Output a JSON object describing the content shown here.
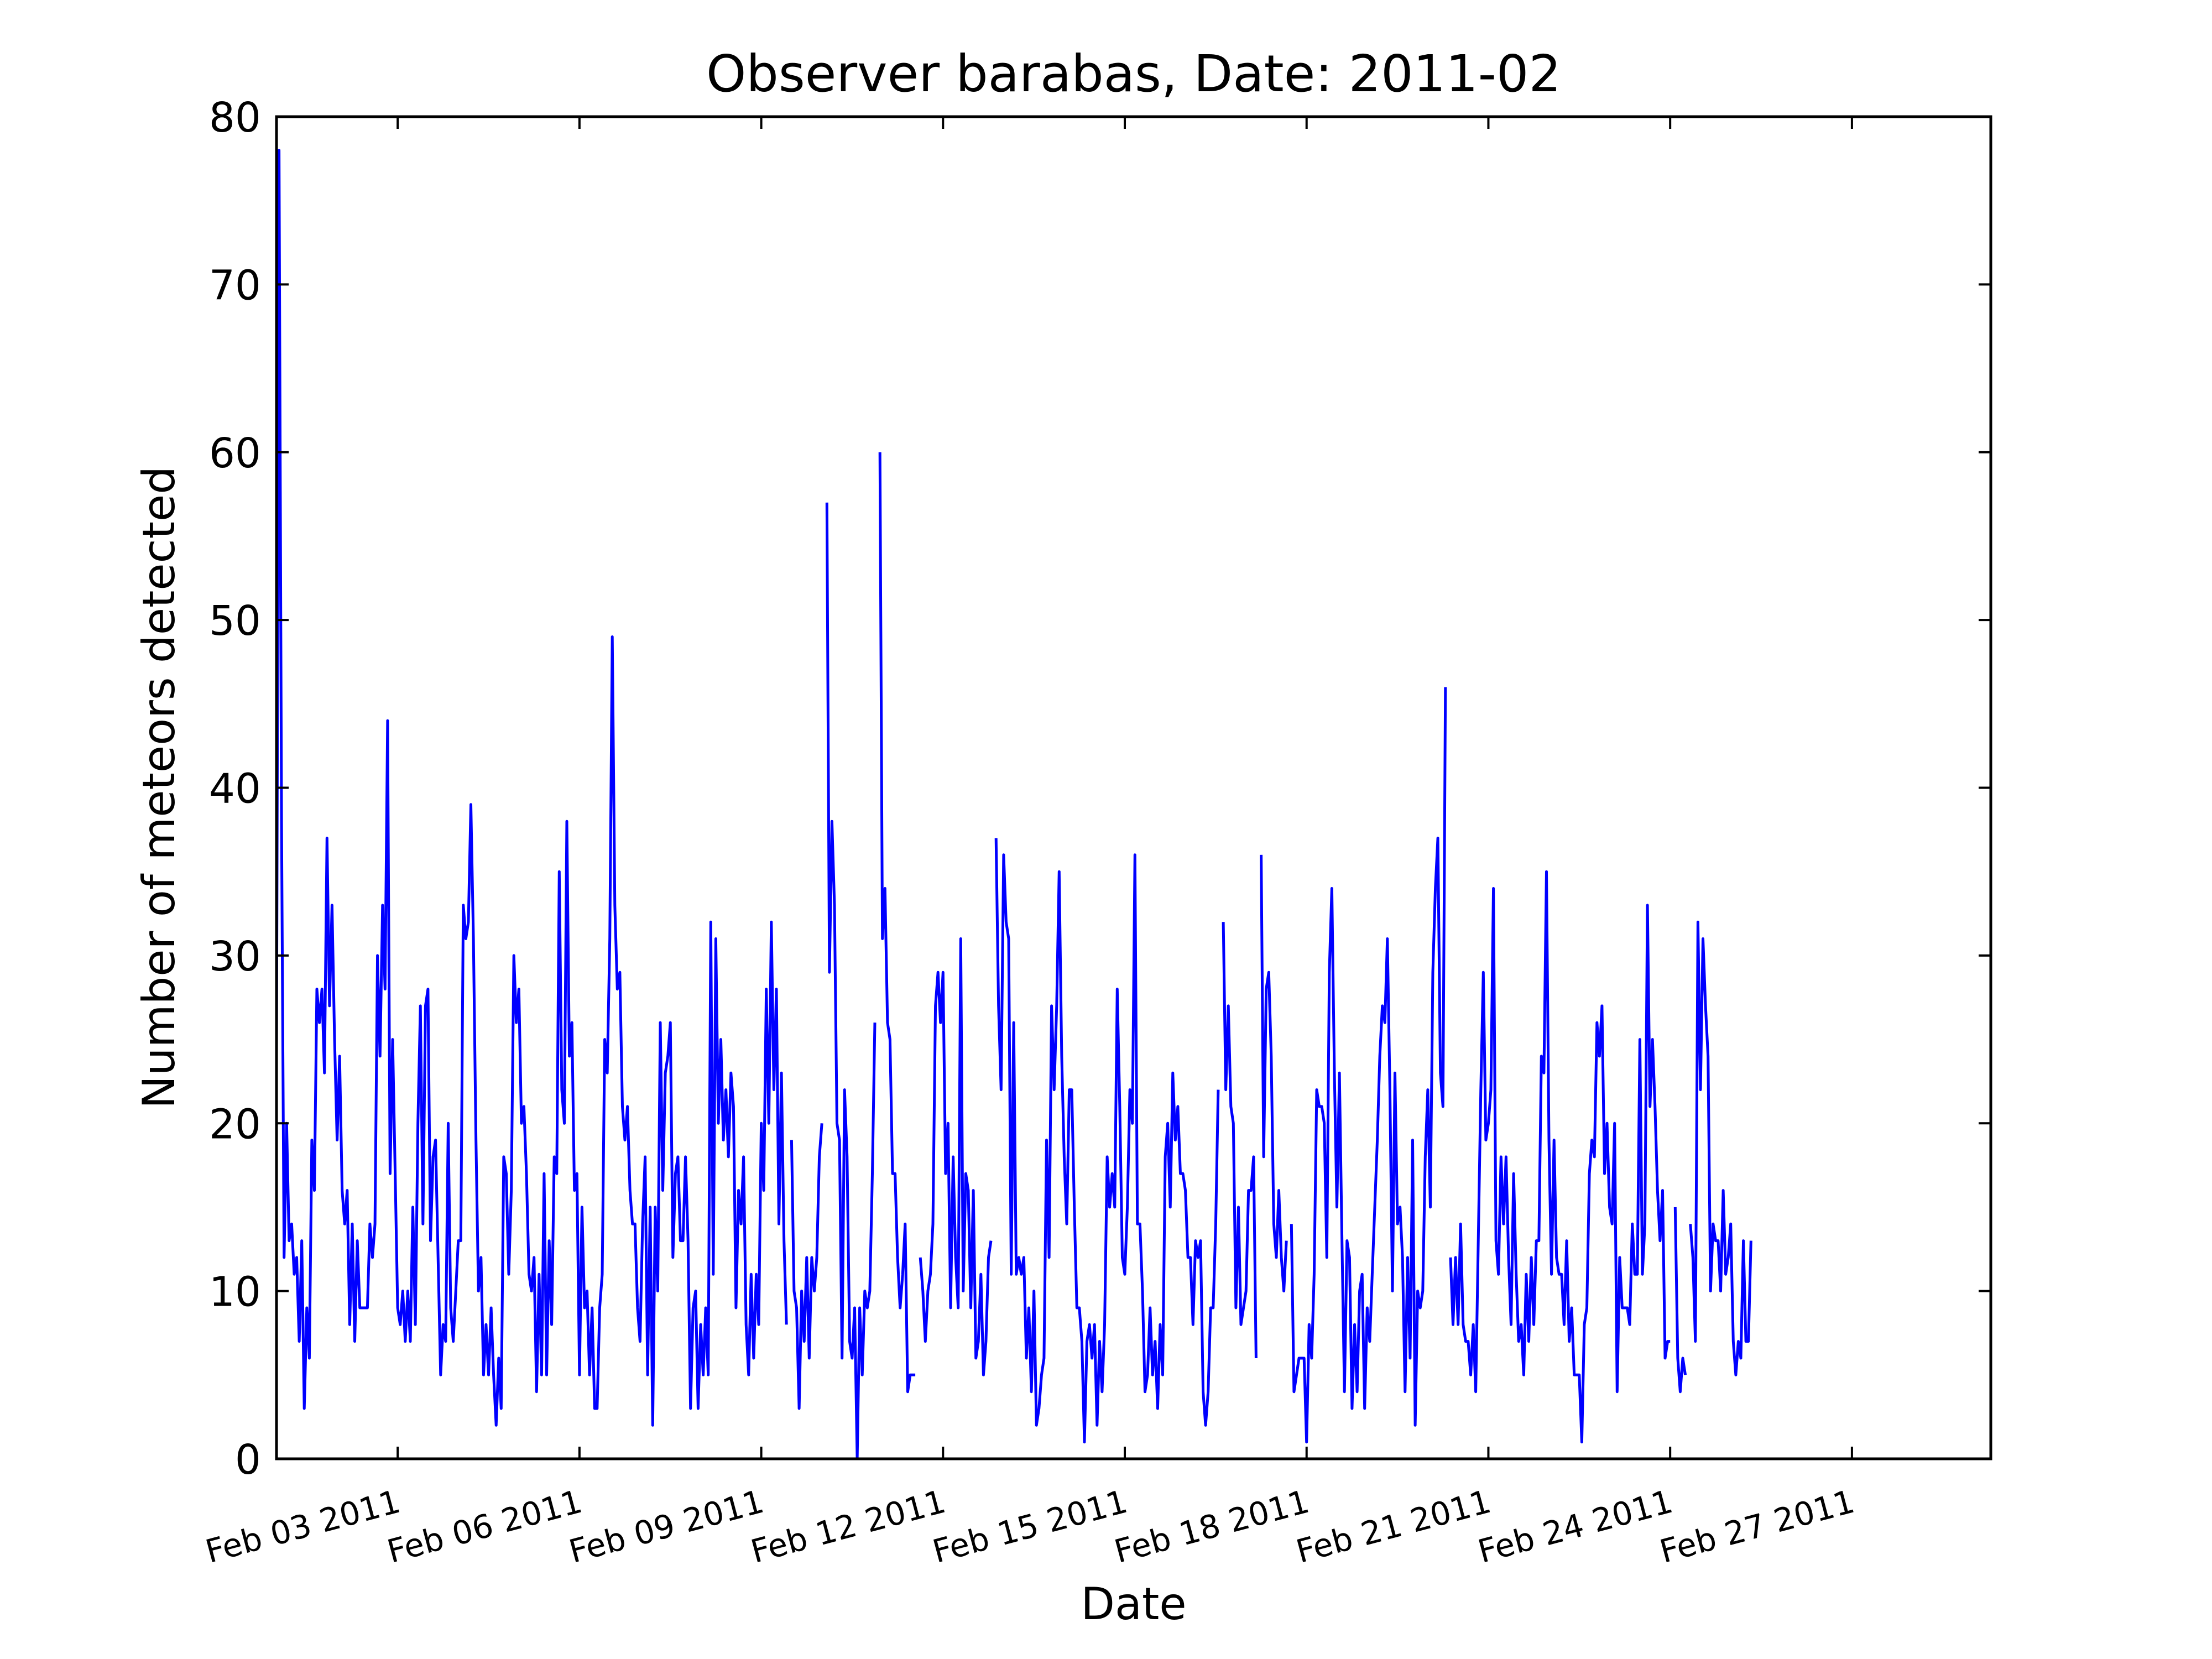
{
  "chart_data": {
    "type": "line",
    "title": "Observer barabas, Date: 2011-02",
    "xlabel": "Date",
    "ylabel": "Number of meteors detected",
    "xlim": [
      "2011-02-01 00:00",
      "2011-03-01 07:00"
    ],
    "ylim": [
      0,
      80
    ],
    "yticks": [
      0,
      10,
      20,
      30,
      40,
      50,
      60,
      70,
      80
    ],
    "xticks": [
      {
        "date": "2011-02-03",
        "label": "Feb 03 2011"
      },
      {
        "date": "2011-02-06",
        "label": "Feb 06 2011"
      },
      {
        "date": "2011-02-09",
        "label": "Feb 09 2011"
      },
      {
        "date": "2011-02-12",
        "label": "Feb 12 2011"
      },
      {
        "date": "2011-02-15",
        "label": "Feb 15 2011"
      },
      {
        "date": "2011-02-18",
        "label": "Feb 18 2011"
      },
      {
        "date": "2011-02-21",
        "label": "Feb 21 2011"
      },
      {
        "date": "2011-02-24",
        "label": "Feb 24 2011"
      },
      {
        "date": "2011-02-27",
        "label": "Feb 27 2011"
      }
    ],
    "grid": false,
    "line_color": "#0000ff",
    "series": [
      {
        "start": "2011-02-01 00:00",
        "step_hours": 1,
        "values": [
          24,
          78,
          38,
          12,
          20,
          13,
          14,
          11,
          12,
          7,
          13,
          3,
          9,
          6,
          19,
          16,
          28,
          26,
          28,
          23,
          37,
          27,
          33,
          25,
          19,
          24,
          16,
          14,
          16,
          8,
          14,
          7,
          13,
          9,
          9,
          9,
          9,
          14,
          12,
          14,
          30,
          24,
          33,
          28,
          44,
          17,
          25,
          17,
          9,
          8,
          10,
          7,
          10,
          7,
          15,
          8,
          20,
          27,
          14,
          27,
          28,
          13,
          18,
          19,
          12,
          5,
          8,
          7,
          20,
          9,
          7,
          10,
          13,
          13,
          33,
          31,
          32,
          39,
          31,
          19,
          10,
          12,
          5,
          8,
          5,
          9,
          5,
          2,
          6,
          3,
          18,
          17,
          11,
          16,
          30,
          26,
          28,
          20,
          21,
          17,
          11,
          10,
          12,
          4,
          11,
          5,
          17,
          5,
          13,
          8,
          18,
          17,
          35,
          22,
          20,
          38,
          24,
          26,
          16,
          17,
          5,
          15,
          9,
          10,
          5,
          9,
          3,
          3,
          9,
          11,
          25,
          23,
          31,
          49,
          33,
          28,
          29,
          21,
          19,
          21,
          16,
          14,
          14,
          9,
          7,
          14,
          18,
          5,
          15,
          2,
          15,
          10,
          26,
          16,
          23,
          24,
          26,
          12,
          17,
          18,
          13,
          13,
          18,
          13,
          3,
          9,
          10,
          3,
          8,
          5,
          9,
          5,
          32,
          11,
          31,
          20,
          25,
          19,
          22,
          18,
          23,
          21,
          9,
          16,
          14,
          18,
          8,
          5,
          11,
          6,
          11,
          8,
          20,
          16,
          28,
          20,
          32,
          22,
          28,
          14,
          23,
          13,
          8,
          null,
          19,
          10,
          9,
          3,
          10,
          7,
          12,
          6,
          12,
          10,
          12,
          18,
          20,
          null,
          57,
          29,
          38,
          33,
          20,
          19,
          6,
          22,
          18,
          7,
          6,
          9,
          0,
          9,
          5,
          10,
          9,
          10,
          17,
          26,
          null,
          60,
          31,
          34,
          26,
          25,
          17,
          17,
          12,
          9,
          11,
          14,
          4,
          5,
          5,
          5,
          null,
          12,
          10,
          7,
          10,
          11,
          14,
          27,
          29,
          26,
          29,
          17,
          20,
          9,
          18,
          12,
          9,
          31,
          10,
          17,
          16,
          9,
          16,
          6,
          7,
          11,
          5,
          7,
          12,
          13,
          null,
          37,
          27,
          22,
          36,
          32,
          31,
          11,
          26,
          11,
          12,
          11,
          12,
          6,
          9,
          4,
          10,
          2,
          3,
          5,
          6,
          19,
          12,
          27,
          22,
          27,
          35,
          24,
          18,
          14,
          22,
          22,
          15,
          9,
          9,
          7,
          1,
          7,
          8,
          6,
          8,
          2,
          7,
          4,
          8,
          18,
          15,
          17,
          15,
          28,
          21,
          12,
          11,
          15,
          22,
          20,
          36,
          14,
          14,
          10,
          4,
          5,
          9,
          5,
          7,
          3,
          8,
          5,
          18,
          20,
          15,
          23,
          19,
          21,
          17,
          17,
          16,
          12,
          12,
          8,
          13,
          12,
          13,
          4,
          2,
          4,
          9,
          9,
          14,
          22,
          null,
          32,
          22,
          27,
          21,
          20,
          9,
          15,
          8,
          9,
          10,
          16,
          16,
          18,
          6,
          null,
          36,
          18,
          28,
          29,
          24,
          14,
          12,
          16,
          12,
          10,
          13,
          null,
          14,
          4,
          5,
          6,
          6,
          6,
          1,
          8,
          6,
          11,
          22,
          21,
          21,
          20,
          12,
          29,
          34,
          23,
          15,
          23,
          13,
          4,
          13,
          12,
          3,
          8,
          4,
          10,
          11,
          3,
          9,
          7,
          11,
          15,
          19,
          24,
          27,
          26,
          31,
          22,
          10,
          23,
          14,
          15,
          12,
          4,
          12,
          6,
          19,
          2,
          10,
          9,
          10,
          18,
          22,
          15,
          29,
          34,
          37,
          23,
          21,
          46,
          null,
          12,
          8,
          12,
          8,
          14,
          8,
          7,
          7,
          5,
          8,
          4,
          13,
          22,
          29,
          19,
          20,
          22,
          34,
          13,
          11,
          18,
          14,
          18,
          12,
          8,
          17,
          11,
          7,
          8,
          5,
          11,
          7,
          12,
          8,
          13,
          13,
          24,
          23,
          35,
          19,
          11,
          19,
          12,
          11,
          11,
          8,
          13,
          7,
          9,
          5,
          5,
          5,
          1,
          8,
          9,
          17,
          19,
          18,
          26,
          24,
          27,
          17,
          20,
          15,
          14,
          20,
          4,
          12,
          9,
          9,
          9,
          8,
          14,
          11,
          11,
          25,
          11,
          14,
          33,
          21,
          25,
          21,
          16,
          13,
          16,
          6,
          7,
          7,
          null,
          15,
          6,
          4,
          6,
          5,
          null,
          14,
          12,
          7,
          32,
          22,
          31,
          27,
          24,
          10,
          14,
          13,
          13,
          10,
          16,
          11,
          12,
          14,
          7,
          5,
          7,
          6,
          13,
          7,
          7,
          13
        ]
      }
    ]
  }
}
